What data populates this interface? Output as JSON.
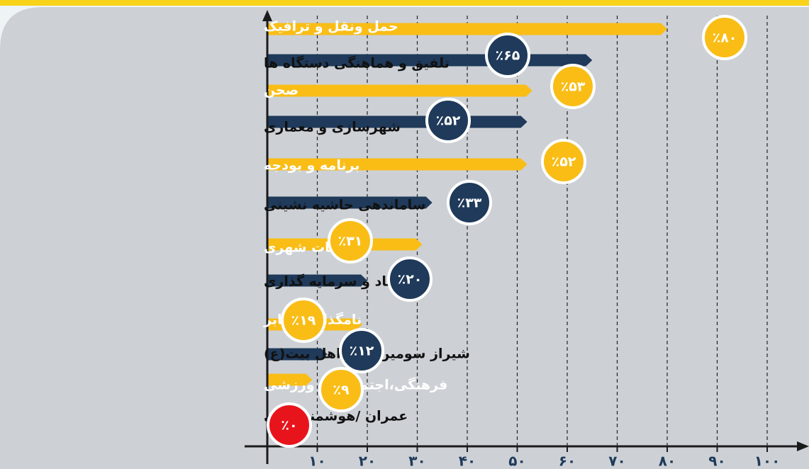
{
  "chart_data": {
    "type": "barh",
    "categories": [
      "حمل ونقل و ترافیک",
      "تلفیق و هماهنگی دستگاه ها",
      "صحن",
      "شهرسازی و معماری",
      "برنامه و بودجه",
      "ساماندهی حاشیه نشینی",
      "خدمات شهری",
      "اقتصاد و سرمایه گذاری",
      "نامگذاری معابر",
      "شیراز سومین حرم اهل بیت(ع)",
      "فرهنگی،اجتماعی و ورزشی",
      "عمران /هوشمندسازی"
    ],
    "values": [
      80,
      65,
      53,
      52,
      52,
      33,
      31,
      20,
      19,
      12,
      9,
      0
    ],
    "value_labels": [
      "٪۸۰",
      "٪۶۵",
      "٪۵۳",
      "٪۵۲",
      "٪۵۲",
      "٪۳۳",
      "٪۳۱",
      "٪۲۰",
      "٪۱۹",
      "٪۱۲",
      "٪۹",
      "٪۰"
    ],
    "colors": [
      "#f9bd16",
      "#1f3a5a",
      "#f9bd16",
      "#1f3a5a",
      "#f9bd16",
      "#1f3a5a",
      "#f9bd16",
      "#1f3a5a",
      "#f9bd16",
      "#1f3a5a",
      "#f9bd16",
      "#1f3a5a"
    ],
    "label_colors": [
      "#f9bd16",
      "#1f3a5a",
      "#f9bd16",
      "#1f3a5a",
      "#f9bd16",
      "#1f3a5a",
      "#f9bd16",
      "#1f3a5a",
      "#f9bd16",
      "#1f3a5a",
      "#f9bd16",
      "#e8141c"
    ],
    "xlim": [
      0,
      100
    ],
    "xticks": [
      {
        "value": 10,
        "label": "۱۰"
      },
      {
        "value": 20,
        "label": "۲۰"
      },
      {
        "value": 30,
        "label": "۳۰"
      },
      {
        "value": 40,
        "label": "۴۰"
      },
      {
        "value": 50,
        "label": "۵۰"
      },
      {
        "value": 60,
        "label": "۶۰"
      },
      {
        "value": 70,
        "label": "۷۰"
      },
      {
        "value": 80,
        "label": "۸۰"
      },
      {
        "value": 90,
        "label": "۹۰"
      },
      {
        "value": 100,
        "label": "۱۰۰"
      }
    ],
    "grid": true
  }
}
